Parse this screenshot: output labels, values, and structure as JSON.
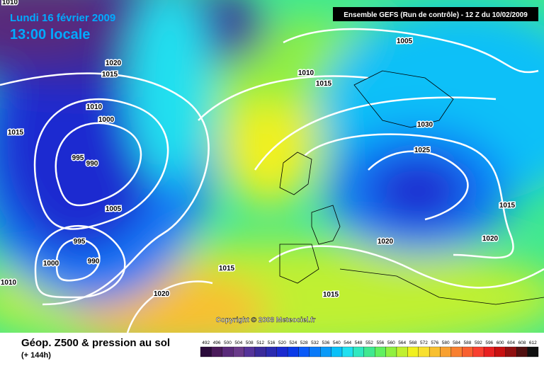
{
  "header": {
    "date": "Lundi 16 février 2009",
    "time": "13:00 locale",
    "run": "Ensemble GEFS (Run de contrôle)  - 12 Z du 10/02/2009"
  },
  "isobar_labels": [
    1010,
    1020,
    1015,
    1010,
    1000,
    1015,
    995,
    990,
    1005,
    995,
    990,
    1000,
    1010,
    1015,
    1020,
    1005,
    1010,
    1015,
    1030,
    1025,
    1015,
    1020,
    1020,
    1015
  ],
  "copyright": "Copyright © 2008 Meteociel.fr",
  "footer": {
    "title": "Géop. Z500 & pression au sol",
    "subtitle": "(+ 144h)"
  },
  "legend": {
    "values": [
      492,
      496,
      500,
      504,
      508,
      512,
      516,
      520,
      524,
      528,
      532,
      536,
      540,
      544,
      548,
      552,
      556,
      560,
      564,
      568,
      572,
      576,
      580,
      584,
      588,
      592,
      596,
      600,
      604,
      608,
      612
    ],
    "colors": [
      "#2a0a3a",
      "#4a1a5a",
      "#5a2a7a",
      "#6a3a8a",
      "#553399",
      "#3a2a9a",
      "#2a2ab0",
      "#1a2ad0",
      "#0a3ae8",
      "#0a5af8",
      "#0a7af8",
      "#0a9af8",
      "#0ac0f8",
      "#20e0f0",
      "#30e8c0",
      "#40e890",
      "#60f060",
      "#90f040",
      "#c0f030",
      "#f0f020",
      "#f8e030",
      "#f8c030",
      "#f8a030",
      "#f88030",
      "#f86030",
      "#f84030",
      "#e82020",
      "#c81010",
      "#901010",
      "#501010",
      "#101010"
    ]
  }
}
